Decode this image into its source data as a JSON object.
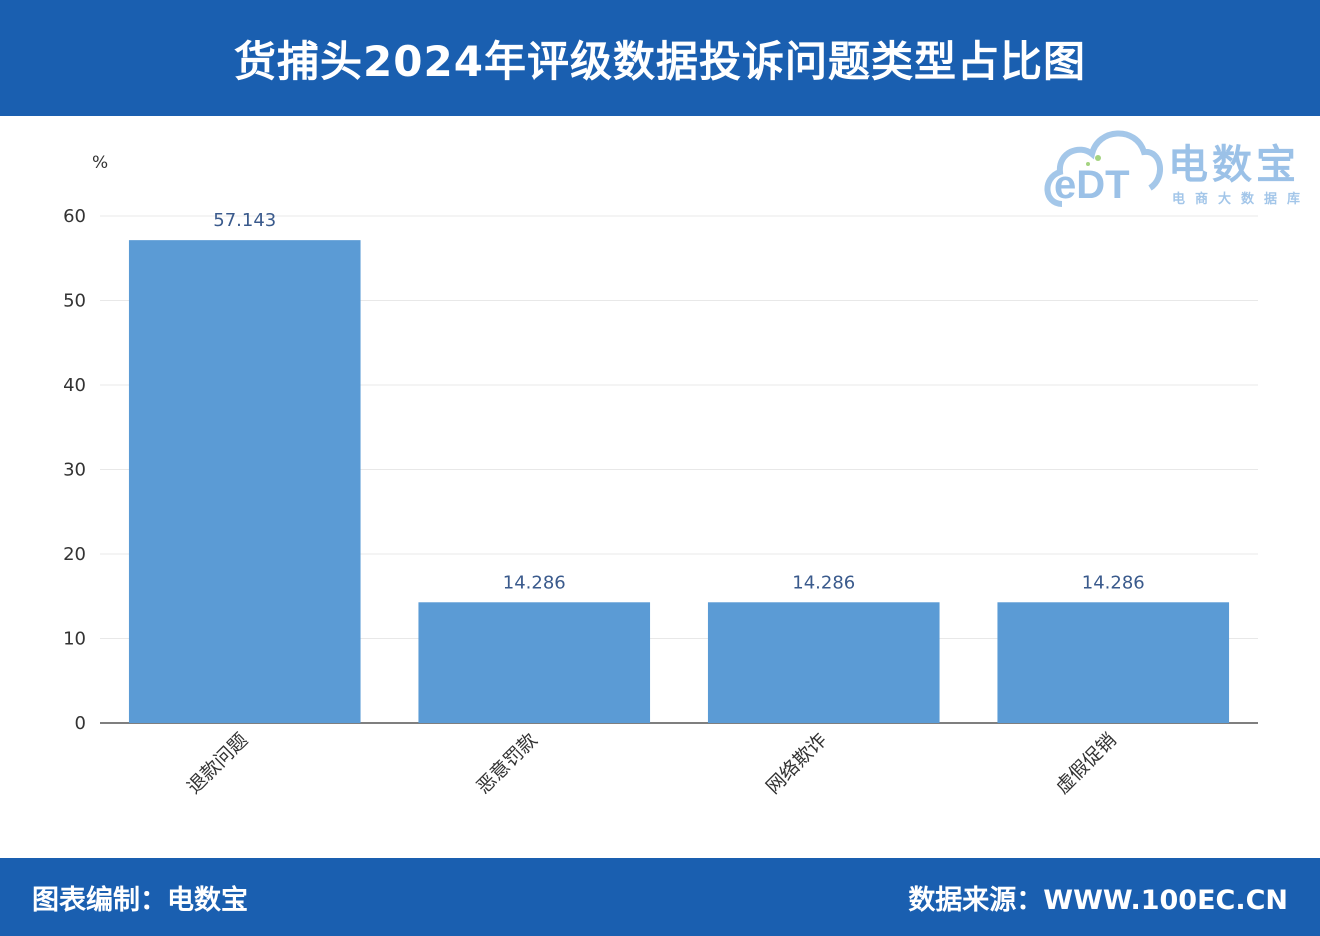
{
  "header": {
    "title": "货捕头2024年评级数据投诉问题类型占比图"
  },
  "watermark": {
    "logo_text": "eDT",
    "name": "电数宝",
    "subtitle": "电商大数据库",
    "colors": {
      "cloud": "#4a8fd4",
      "accent": "#7ec04a"
    }
  },
  "footer": {
    "left_text": "图表编制：电数宝",
    "right_text": "数据来源：WWW.100EC.CN"
  },
  "colors": {
    "brand": "#1a5fb0",
    "bar": "#5b9bd5"
  },
  "chart_data": {
    "type": "bar",
    "title": "货捕头2024年评级数据投诉问题类型占比图",
    "ylabel": "%",
    "xlabel": "",
    "ylim": [
      0,
      60
    ],
    "yticks": [
      0,
      10,
      20,
      30,
      40,
      50,
      60
    ],
    "categories": [
      "退款问题",
      "恶意罚款",
      "网络欺诈",
      "虚假促销"
    ],
    "values": [
      57.143,
      14.286,
      14.286,
      14.286
    ],
    "value_labels": [
      "57.143",
      "14.286",
      "14.286",
      "14.286"
    ],
    "grid": true,
    "legend": "none"
  }
}
